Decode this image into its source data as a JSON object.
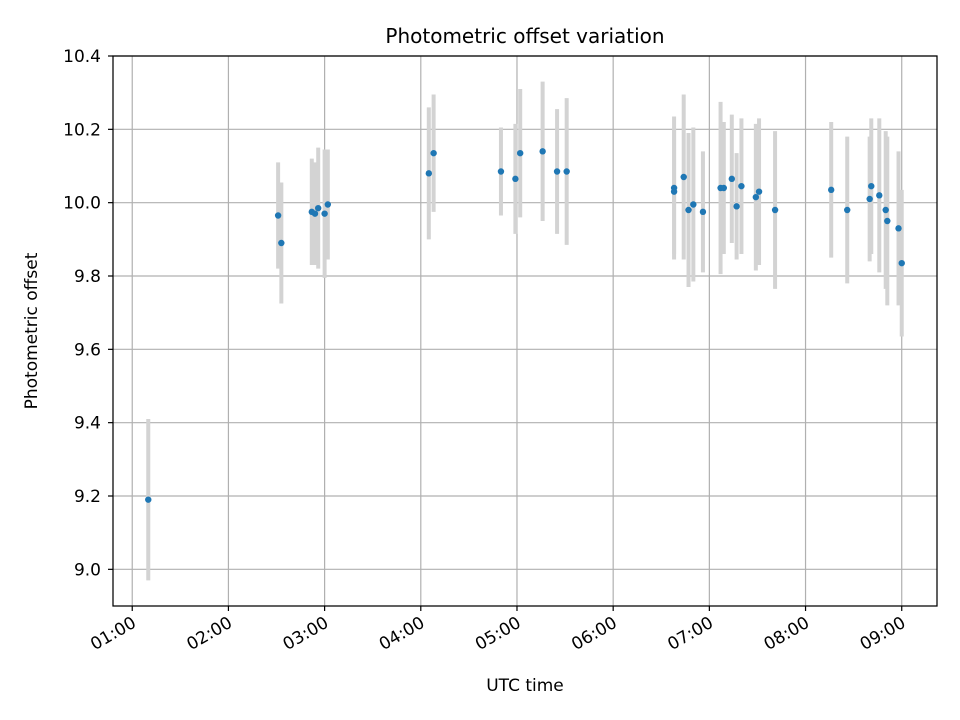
{
  "chart_data": {
    "type": "scatter",
    "title": "Photometric offset variation",
    "xlabel": "UTC time",
    "ylabel": "Photometric offset",
    "x_axis_type": "time",
    "xlim": [
      "00:48",
      "09:22"
    ],
    "ylim": [
      8.9,
      10.4
    ],
    "xticks": [
      "01:00",
      "02:00",
      "03:00",
      "04:00",
      "05:00",
      "06:00",
      "07:00",
      "08:00",
      "09:00"
    ],
    "yticks": [
      "9.0",
      "9.2",
      "9.4",
      "9.6",
      "9.8",
      "10.0",
      "10.2",
      "10.4"
    ],
    "grid": true,
    "legend": "none",
    "x_tick_rotation": "30 degrees",
    "colors": {
      "marker": "#1f77b4",
      "errorbar": "#d3d3d3",
      "grid": "#b0b0b0"
    },
    "series": [
      {
        "points": [
          {
            "x": "01:10",
            "y": 9.19,
            "err": 0.22
          },
          {
            "x": "02:31",
            "y": 9.965,
            "err": 0.145
          },
          {
            "x": "02:33",
            "y": 9.89,
            "err": 0.165
          },
          {
            "x": "02:52",
            "y": 9.975,
            "err": 0.145
          },
          {
            "x": "02:54",
            "y": 9.97,
            "err": 0.14
          },
          {
            "x": "02:56",
            "y": 9.985,
            "err": 0.165
          },
          {
            "x": "03:00",
            "y": 9.97,
            "err": 0.175
          },
          {
            "x": "03:02",
            "y": 9.995,
            "err": 0.15
          },
          {
            "x": "04:05",
            "y": 10.08,
            "err": 0.18
          },
          {
            "x": "04:08",
            "y": 10.135,
            "err": 0.16
          },
          {
            "x": "04:50",
            "y": 10.085,
            "err": 0.12
          },
          {
            "x": "04:59",
            "y": 10.065,
            "err": 0.15
          },
          {
            "x": "05:02",
            "y": 10.135,
            "err": 0.175
          },
          {
            "x": "05:16",
            "y": 10.14,
            "err": 0.19
          },
          {
            "x": "05:25",
            "y": 10.085,
            "err": 0.17
          },
          {
            "x": "05:31",
            "y": 10.085,
            "err": 0.2
          },
          {
            "x": "06:38",
            "y": 10.04,
            "err": 0.195
          },
          {
            "x": "06:38",
            "y": 10.03,
            "err": 0.17
          },
          {
            "x": "06:44",
            "y": 10.07,
            "err": 0.225
          },
          {
            "x": "06:47",
            "y": 9.98,
            "err": 0.21
          },
          {
            "x": "06:50",
            "y": 9.995,
            "err": 0.21
          },
          {
            "x": "06:56",
            "y": 9.975,
            "err": 0.165
          },
          {
            "x": "07:07",
            "y": 10.04,
            "err": 0.235
          },
          {
            "x": "07:09",
            "y": 10.04,
            "err": 0.18
          },
          {
            "x": "07:14",
            "y": 10.065,
            "err": 0.175
          },
          {
            "x": "07:17",
            "y": 9.99,
            "err": 0.145
          },
          {
            "x": "07:20",
            "y": 10.045,
            "err": 0.185
          },
          {
            "x": "07:29",
            "y": 10.015,
            "err": 0.2
          },
          {
            "x": "07:31",
            "y": 10.03,
            "err": 0.2
          },
          {
            "x": "07:41",
            "y": 9.98,
            "err": 0.215
          },
          {
            "x": "08:16",
            "y": 10.035,
            "err": 0.185
          },
          {
            "x": "08:26",
            "y": 9.98,
            "err": 0.2
          },
          {
            "x": "08:40",
            "y": 10.01,
            "err": 0.17
          },
          {
            "x": "08:41",
            "y": 10.045,
            "err": 0.185
          },
          {
            "x": "08:46",
            "y": 10.02,
            "err": 0.21
          },
          {
            "x": "08:50",
            "y": 9.98,
            "err": 0.215
          },
          {
            "x": "08:51",
            "y": 9.95,
            "err": 0.23
          },
          {
            "x": "08:58",
            "y": 9.93,
            "err": 0.21
          },
          {
            "x": "09:00",
            "y": 9.835,
            "err": 0.2
          }
        ]
      }
    ]
  }
}
